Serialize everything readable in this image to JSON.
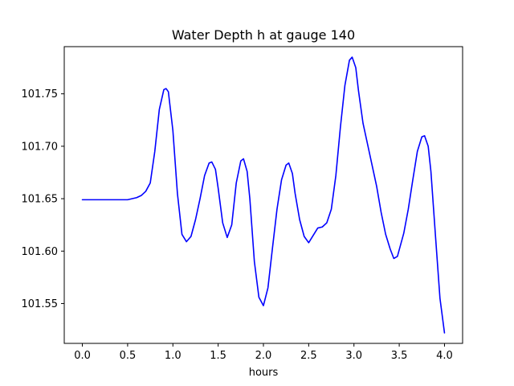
{
  "chart_data": {
    "type": "line",
    "title": "Water Depth h at gauge 140",
    "xlabel": "hours",
    "ylabel": "",
    "xlim": [
      -0.2,
      4.2
    ],
    "ylim": [
      101.512,
      101.795
    ],
    "xticks": [
      0.0,
      0.5,
      1.0,
      1.5,
      2.0,
      2.5,
      3.0,
      3.5,
      4.0
    ],
    "xtick_labels": [
      "0.0",
      "0.5",
      "1.0",
      "1.5",
      "2.0",
      "2.5",
      "3.0",
      "3.5",
      "4.0"
    ],
    "yticks": [
      101.55,
      101.6,
      101.65,
      101.7,
      101.75
    ],
    "ytick_labels": [
      "101.55",
      "101.60",
      "101.65",
      "101.70",
      "101.75"
    ],
    "grid": false,
    "legend": "none",
    "series": [
      {
        "color": "#0000ff",
        "x": [
          0.0,
          0.1,
          0.2,
          0.3,
          0.4,
          0.5,
          0.6,
          0.65,
          0.7,
          0.75,
          0.8,
          0.85,
          0.9,
          0.925,
          0.95,
          1.0,
          1.05,
          1.1,
          1.15,
          1.2,
          1.25,
          1.3,
          1.35,
          1.4,
          1.43,
          1.47,
          1.5,
          1.55,
          1.6,
          1.65,
          1.7,
          1.75,
          1.78,
          1.82,
          1.85,
          1.9,
          1.95,
          2.0,
          2.05,
          2.1,
          2.15,
          2.2,
          2.25,
          2.28,
          2.32,
          2.35,
          2.4,
          2.45,
          2.5,
          2.55,
          2.6,
          2.65,
          2.7,
          2.75,
          2.8,
          2.85,
          2.9,
          2.95,
          2.98,
          3.02,
          3.05,
          3.1,
          3.15,
          3.2,
          3.25,
          3.3,
          3.35,
          3.4,
          3.44,
          3.48,
          3.55,
          3.6,
          3.65,
          3.7,
          3.75,
          3.78,
          3.82,
          3.85,
          3.9,
          3.95,
          4.0
        ],
        "y": [
          101.649,
          101.649,
          101.649,
          101.649,
          101.649,
          101.649,
          101.651,
          101.653,
          101.657,
          101.665,
          101.695,
          101.735,
          101.754,
          101.755,
          101.752,
          101.715,
          101.655,
          101.616,
          101.609,
          101.614,
          101.63,
          101.65,
          101.672,
          101.684,
          101.685,
          101.678,
          101.66,
          101.627,
          101.613,
          101.625,
          101.665,
          101.686,
          101.688,
          101.676,
          101.65,
          101.59,
          101.556,
          101.548,
          101.565,
          101.603,
          101.64,
          101.668,
          101.682,
          101.684,
          101.674,
          101.655,
          101.63,
          101.614,
          101.608,
          101.615,
          101.622,
          101.623,
          101.627,
          101.64,
          101.672,
          101.718,
          101.758,
          101.782,
          101.785,
          101.775,
          101.753,
          101.722,
          101.702,
          101.682,
          101.662,
          101.637,
          101.616,
          101.602,
          101.593,
          101.595,
          101.617,
          101.64,
          101.668,
          101.695,
          101.709,
          101.71,
          101.7,
          101.676,
          101.615,
          101.555,
          101.522
        ]
      }
    ]
  }
}
